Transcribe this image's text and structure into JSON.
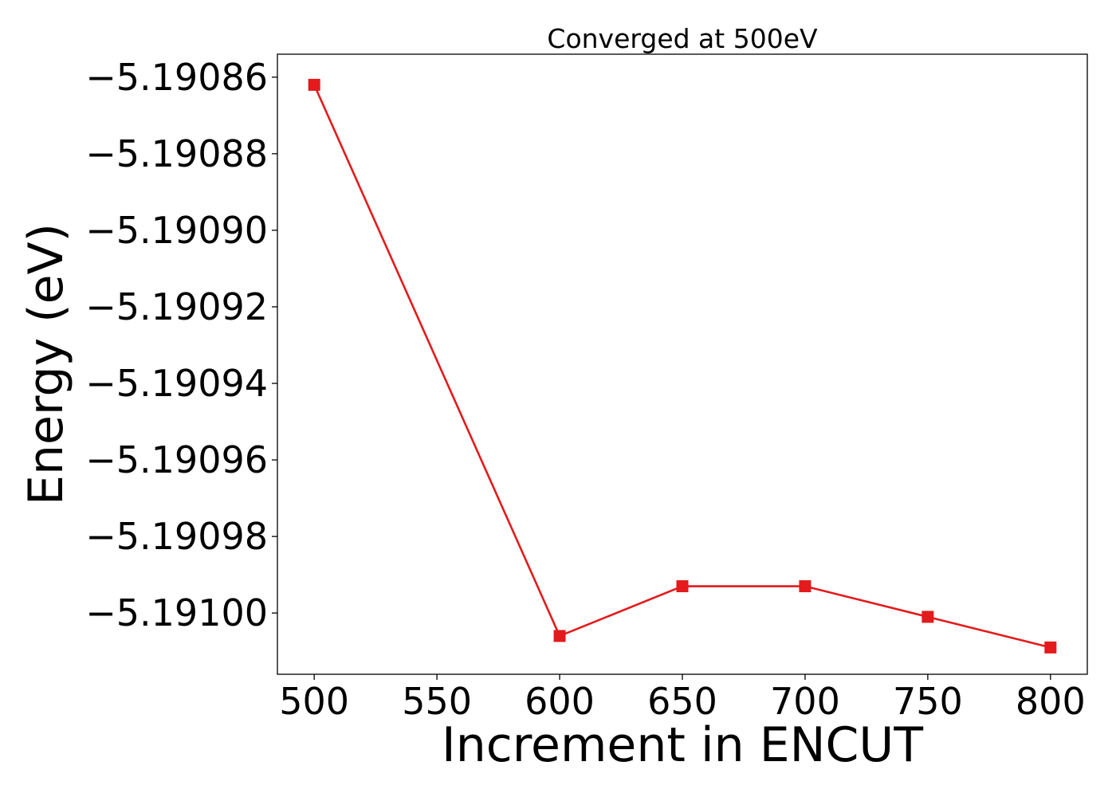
{
  "chart_data": {
    "type": "line",
    "title": "Converged at 500eV",
    "xlabel": "Increment in ENCUT",
    "ylabel": "Energy (eV)",
    "x": [
      500,
      600,
      650,
      700,
      750,
      800
    ],
    "series": [
      {
        "values": [
          -5.190862,
          -5.191006,
          -5.190993,
          -5.190993,
          -5.191001,
          -5.191009
        ],
        "color": "#e41a1c",
        "marker": "square"
      }
    ],
    "xticks": [
      500,
      550,
      600,
      650,
      700,
      750,
      800
    ],
    "xtick_labels": [
      "500",
      "550",
      "600",
      "650",
      "700",
      "750",
      "800"
    ],
    "yticks": [
      -5.19086,
      -5.19088,
      -5.1909,
      -5.19092,
      -5.19094,
      -5.19096,
      -5.19098,
      -5.191
    ],
    "ytick_labels": [
      "−5.19086",
      "−5.19088",
      "−5.19090",
      "−5.19092",
      "−5.19094",
      "−5.19096",
      "−5.19098",
      "−5.19100"
    ],
    "xlim": [
      485,
      815
    ],
    "ylim": [
      -5.191016,
      -5.190854
    ],
    "grid": false,
    "legend": "none"
  }
}
